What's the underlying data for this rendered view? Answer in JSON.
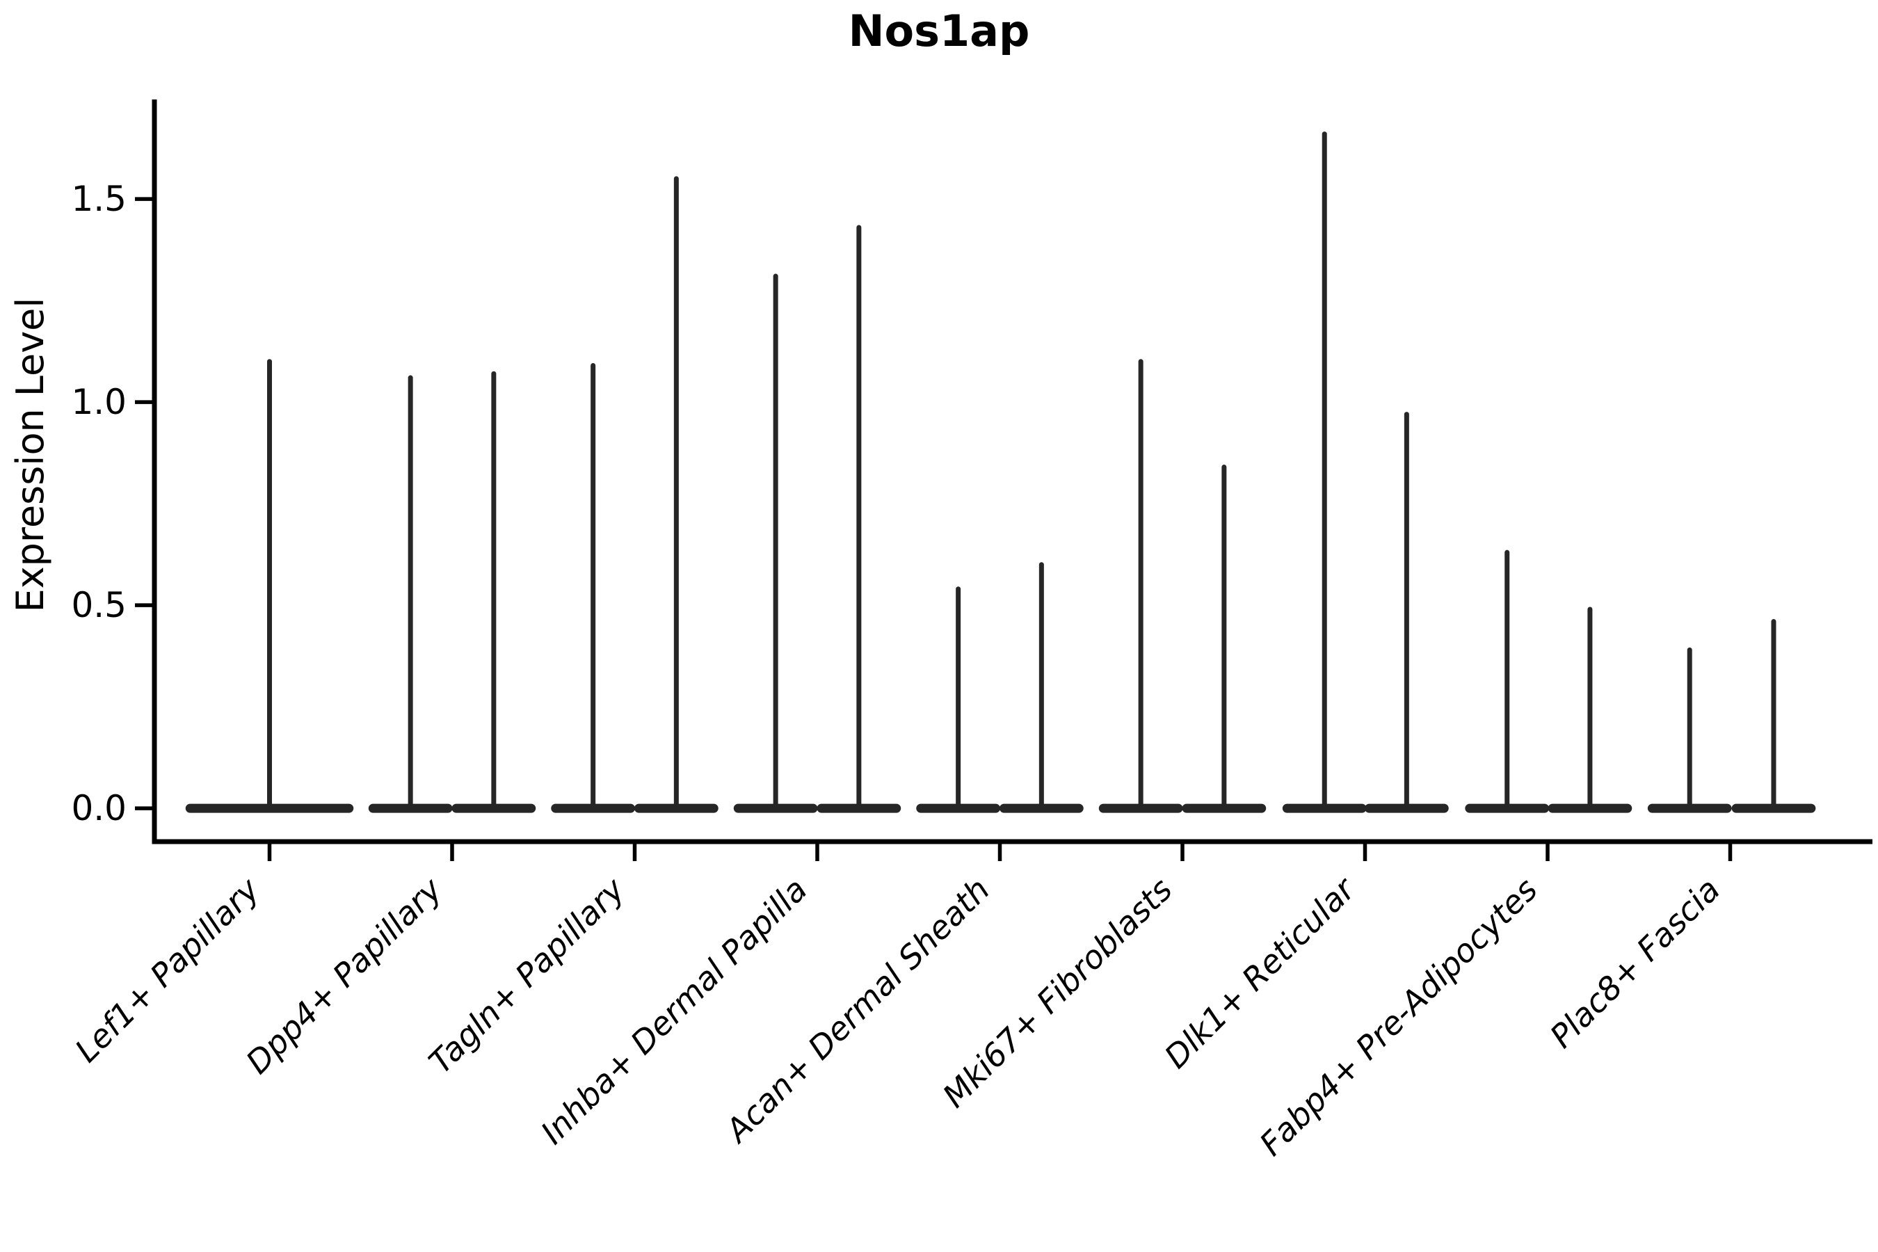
{
  "chart_data": {
    "type": "violin",
    "title": "Nos1ap",
    "xlabel": "",
    "ylabel": "Expression Level",
    "grid": false,
    "legend": null,
    "background": "#ffffff",
    "ink_color": "#000000",
    "violin_color": "#262626",
    "ylim": [
      -0.082,
      1.745
    ],
    "yticks": [
      {
        "value": 0.0,
        "label": "0.0"
      },
      {
        "value": 0.5,
        "label": "0.5"
      },
      {
        "value": 1.0,
        "label": "1.0"
      },
      {
        "value": 1.5,
        "label": "1.5"
      }
    ],
    "categories": [
      "Lef1+ Papillary",
      "Dpp4+ Papillary",
      "Tagln+ Papillary",
      "Inhba+ Dermal Papilla",
      "Acan+ Dermal Sheath",
      "Mki67+ Fibroblasts",
      "Dlk1+ Reticular",
      "Fabp4+ Pre-Adipocytes",
      "Plac8+ Fascia"
    ],
    "violins": [
      {
        "category": "Lef1+ Papillary",
        "spikes": [
          {
            "offset": 0.0,
            "half_width": 0.46,
            "max": 1.1
          }
        ]
      },
      {
        "category": "Dpp4+ Papillary",
        "spikes": [
          {
            "offset": -0.228,
            "half_width": 0.23,
            "max": 1.06
          },
          {
            "offset": 0.228,
            "half_width": 0.23,
            "max": 1.07
          }
        ]
      },
      {
        "category": "Tagln+ Papillary",
        "spikes": [
          {
            "offset": -0.228,
            "half_width": 0.23,
            "max": 1.09
          },
          {
            "offset": 0.228,
            "half_width": 0.23,
            "max": 1.55
          }
        ]
      },
      {
        "category": "Inhba+ Dermal Papilla",
        "spikes": [
          {
            "offset": -0.228,
            "half_width": 0.23,
            "max": 1.31
          },
          {
            "offset": 0.228,
            "half_width": 0.23,
            "max": 1.43
          }
        ]
      },
      {
        "category": "Acan+ Dermal Sheath",
        "spikes": [
          {
            "offset": -0.228,
            "half_width": 0.23,
            "max": 0.54
          },
          {
            "offset": 0.228,
            "half_width": 0.23,
            "max": 0.6
          }
        ]
      },
      {
        "category": "Mki67+ Fibroblasts",
        "spikes": [
          {
            "offset": -0.228,
            "half_width": 0.23,
            "max": 1.1
          },
          {
            "offset": 0.228,
            "half_width": 0.23,
            "max": 0.84
          }
        ]
      },
      {
        "category": "Dlk1+ Reticular",
        "spikes": [
          {
            "offset": -0.222,
            "half_width": 0.23,
            "max": 1.66
          },
          {
            "offset": 0.228,
            "half_width": 0.23,
            "max": 0.97
          }
        ]
      },
      {
        "category": "Fabp4+ Pre-Adipocytes",
        "spikes": [
          {
            "offset": -0.222,
            "half_width": 0.23,
            "max": 0.63
          },
          {
            "offset": 0.232,
            "half_width": 0.23,
            "max": 0.49
          }
        ]
      },
      {
        "category": "Plac8+ Fascia",
        "spikes": [
          {
            "offset": -0.222,
            "half_width": 0.23,
            "max": 0.39
          },
          {
            "offset": 0.238,
            "half_width": 0.23,
            "max": 0.46
          }
        ]
      }
    ],
    "baseline_value": 0.0
  }
}
